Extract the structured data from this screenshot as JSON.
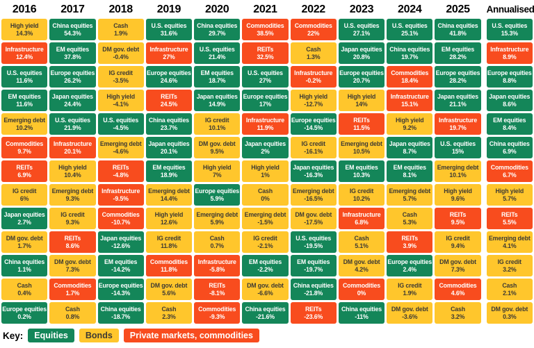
{
  "colors": {
    "equities": "#148659",
    "bonds": "#FFC62C",
    "private": "#F84C1E",
    "text_on_dark": "#FFFFFF",
    "text_on_yellow": "#3D3A33"
  },
  "chart_data": {
    "type": "table",
    "title": "",
    "key": {
      "label": "Key:",
      "items": [
        {
          "label": "Equities",
          "category": "equities"
        },
        {
          "label": "Bonds",
          "category": "bonds"
        },
        {
          "label": "Private markets, commodities",
          "category": "private"
        }
      ]
    },
    "columns": [
      {
        "year": "2016",
        "cells": [
          {
            "label": "High yield",
            "value": "14.3%",
            "category": "bonds"
          },
          {
            "label": "Infrastructure",
            "value": "12.4%",
            "category": "private"
          },
          {
            "label": "U.S. equities",
            "value": "11.6%",
            "category": "equities"
          },
          {
            "label": "EM equities",
            "value": "11.6%",
            "category": "equities"
          },
          {
            "label": "Emerging debt",
            "value": "10.2%",
            "category": "bonds"
          },
          {
            "label": "Commodities",
            "value": "9.7%",
            "category": "private"
          },
          {
            "label": "REITs",
            "value": "6.9%",
            "category": "private"
          },
          {
            "label": "IG credit",
            "value": "6%",
            "category": "bonds"
          },
          {
            "label": "Japan equities",
            "value": "2.7%",
            "category": "equities"
          },
          {
            "label": "DM gov. debt",
            "value": "1.7%",
            "category": "bonds"
          },
          {
            "label": "China equities",
            "value": "1.1%",
            "category": "equities"
          },
          {
            "label": "Cash",
            "value": "0.4%",
            "category": "bonds"
          },
          {
            "label": "Europe equities",
            "value": "0.2%",
            "category": "equities"
          }
        ]
      },
      {
        "year": "2017",
        "cells": [
          {
            "label": "China equities",
            "value": "54.3%",
            "category": "equities"
          },
          {
            "label": "EM equities",
            "value": "37.8%",
            "category": "equities"
          },
          {
            "label": "Europe equities",
            "value": "26.2%",
            "category": "equities"
          },
          {
            "label": "Japan equities",
            "value": "24.4%",
            "category": "equities"
          },
          {
            "label": "U.S. equities",
            "value": "21.9%",
            "category": "equities"
          },
          {
            "label": "Infrastructure",
            "value": "20.1%",
            "category": "private"
          },
          {
            "label": "High yield",
            "value": "10.4%",
            "category": "bonds"
          },
          {
            "label": "Emerging debt",
            "value": "9.3%",
            "category": "bonds"
          },
          {
            "label": "IG credit",
            "value": "9.3%",
            "category": "bonds"
          },
          {
            "label": "REITs",
            "value": "8.6%",
            "category": "private"
          },
          {
            "label": "DM gov. debt",
            "value": "7.3%",
            "category": "bonds"
          },
          {
            "label": "Commodities",
            "value": "1.7%",
            "category": "private"
          },
          {
            "label": "Cash",
            "value": "0.8%",
            "category": "bonds"
          }
        ]
      },
      {
        "year": "2018",
        "cells": [
          {
            "label": "Cash",
            "value": "1.9%",
            "category": "bonds"
          },
          {
            "label": "DM gov. debt",
            "value": "-0.4%",
            "category": "bonds"
          },
          {
            "label": "IG credit",
            "value": "-3.5%",
            "category": "bonds"
          },
          {
            "label": "High yield",
            "value": "-4.1%",
            "category": "bonds"
          },
          {
            "label": "U.S. equities",
            "value": "-4.5%",
            "category": "equities"
          },
          {
            "label": "Emerging debt",
            "value": "-4.6%",
            "category": "bonds"
          },
          {
            "label": "REITs",
            "value": "-4.8%",
            "category": "private"
          },
          {
            "label": "Infrastructure",
            "value": "-9.5%",
            "category": "private"
          },
          {
            "label": "Commodities",
            "value": "-10.7%",
            "category": "private"
          },
          {
            "label": "Japan equities",
            "value": "-12.6%",
            "category": "equities"
          },
          {
            "label": "EM equities",
            "value": "-14.2%",
            "category": "equities"
          },
          {
            "label": "Europe equities",
            "value": "-14.3%",
            "category": "equities"
          },
          {
            "label": "China equities",
            "value": "-18.7%",
            "category": "equities"
          }
        ]
      },
      {
        "year": "2019",
        "cells": [
          {
            "label": "U.S. equities",
            "value": "31.6%",
            "category": "equities"
          },
          {
            "label": "Infrastructure",
            "value": "27%",
            "category": "private"
          },
          {
            "label": "Europe equities",
            "value": "24.6%",
            "category": "equities"
          },
          {
            "label": "REITs",
            "value": "24.5%",
            "category": "private"
          },
          {
            "label": "China equities",
            "value": "23.7%",
            "category": "equities"
          },
          {
            "label": "Japan equities",
            "value": "20.1%",
            "category": "equities"
          },
          {
            "label": "EM equities",
            "value": "18.9%",
            "category": "equities"
          },
          {
            "label": "Emerging debt",
            "value": "14.4%",
            "category": "bonds"
          },
          {
            "label": "High yield",
            "value": "12.6%",
            "category": "bonds"
          },
          {
            "label": "IG credit",
            "value": "11.8%",
            "category": "bonds"
          },
          {
            "label": "Commodities",
            "value": "11.8%",
            "category": "private"
          },
          {
            "label": "DM gov. debt",
            "value": "5.6%",
            "category": "bonds"
          },
          {
            "label": "Cash",
            "value": "2.3%",
            "category": "bonds"
          }
        ]
      },
      {
        "year": "2020",
        "cells": [
          {
            "label": "China equities",
            "value": "29.7%",
            "category": "equities"
          },
          {
            "label": "U.S. equities",
            "value": "21.4%",
            "category": "equities"
          },
          {
            "label": "EM equities",
            "value": "18.7%",
            "category": "equities"
          },
          {
            "label": "Japan equities",
            "value": "14.9%",
            "category": "equities"
          },
          {
            "label": "IG credit",
            "value": "10.1%",
            "category": "bonds"
          },
          {
            "label": "DM gov. debt",
            "value": "9.5%",
            "category": "bonds"
          },
          {
            "label": "High yield",
            "value": "7%",
            "category": "bonds"
          },
          {
            "label": "Europe equities",
            "value": "5.9%",
            "category": "equities"
          },
          {
            "label": "Emerging debt",
            "value": "5.9%",
            "category": "bonds"
          },
          {
            "label": "Cash",
            "value": "0.7%",
            "category": "bonds"
          },
          {
            "label": "Infrastructure",
            "value": "-5.8%",
            "category": "private"
          },
          {
            "label": "REITs",
            "value": "-8.1%",
            "category": "private"
          },
          {
            "label": "Commodities",
            "value": "-9.3%",
            "category": "private"
          }
        ]
      },
      {
        "year": "2021",
        "cells": [
          {
            "label": "Commodities",
            "value": "38.5%",
            "category": "private"
          },
          {
            "label": "REITs",
            "value": "32.5%",
            "category": "private"
          },
          {
            "label": "U.S. equities",
            "value": "27%",
            "category": "equities"
          },
          {
            "label": "Europe equities",
            "value": "17%",
            "category": "equities"
          },
          {
            "label": "Infrastructure",
            "value": "11.9%",
            "category": "private"
          },
          {
            "label": "Japan equities",
            "value": "2%",
            "category": "equities"
          },
          {
            "label": "High yield",
            "value": "1%",
            "category": "bonds"
          },
          {
            "label": "Cash",
            "value": "0%",
            "category": "bonds"
          },
          {
            "label": "Emerging debt",
            "value": "-1.5%",
            "category": "bonds"
          },
          {
            "label": "IG credit",
            "value": "-2.1%",
            "category": "bonds"
          },
          {
            "label": "EM equities",
            "value": "-2.2%",
            "category": "equities"
          },
          {
            "label": "DM gov. debt",
            "value": "-6.6%",
            "category": "bonds"
          },
          {
            "label": "China equities",
            "value": "-21.6%",
            "category": "equities"
          }
        ]
      },
      {
        "year": "2022",
        "cells": [
          {
            "label": "Commodities",
            "value": "22%",
            "category": "private"
          },
          {
            "label": "Cash",
            "value": "1.3%",
            "category": "bonds"
          },
          {
            "label": "Infrastructure",
            "value": "-0.2%",
            "category": "private"
          },
          {
            "label": "High yield",
            "value": "-12.7%",
            "category": "bonds"
          },
          {
            "label": "Europe equities",
            "value": "-14.5%",
            "category": "equities"
          },
          {
            "label": "IG credit",
            "value": "-16.1%",
            "category": "bonds"
          },
          {
            "label": "Japan equities",
            "value": "-16.3%",
            "category": "equities"
          },
          {
            "label": "Emerging debt",
            "value": "-16.5%",
            "category": "bonds"
          },
          {
            "label": "DM gov. debt",
            "value": "-17.5%",
            "category": "bonds"
          },
          {
            "label": "U.S. equities",
            "value": "-19.5%",
            "category": "equities"
          },
          {
            "label": "EM equities",
            "value": "-19.7%",
            "category": "equities"
          },
          {
            "label": "China equities",
            "value": "-21.8%",
            "category": "equities"
          },
          {
            "label": "REITs",
            "value": "-23.6%",
            "category": "private"
          }
        ]
      },
      {
        "year": "2023",
        "cells": [
          {
            "label": "U.S. equities",
            "value": "27.1%",
            "category": "equities"
          },
          {
            "label": "Japan equities",
            "value": "20.8%",
            "category": "equities"
          },
          {
            "label": "Europe equities",
            "value": "20.7%",
            "category": "equities"
          },
          {
            "label": "High yield",
            "value": "14%",
            "category": "bonds"
          },
          {
            "label": "REITs",
            "value": "11.5%",
            "category": "private"
          },
          {
            "label": "Emerging debt",
            "value": "10.5%",
            "category": "bonds"
          },
          {
            "label": "EM equities",
            "value": "10.3%",
            "category": "equities"
          },
          {
            "label": "IG credit",
            "value": "10.2%",
            "category": "bonds"
          },
          {
            "label": "Infrastructure",
            "value": "6.8%",
            "category": "private"
          },
          {
            "label": "Cash",
            "value": "5.1%",
            "category": "bonds"
          },
          {
            "label": "DM gov. debt",
            "value": "4.2%",
            "category": "bonds"
          },
          {
            "label": "Commodities",
            "value": "0%",
            "category": "private"
          },
          {
            "label": "China equities",
            "value": "-11%",
            "category": "equities"
          }
        ]
      },
      {
        "year": "2024",
        "cells": [
          {
            "label": "U.S. equities",
            "value": "25.1%",
            "category": "equities"
          },
          {
            "label": "China equities",
            "value": "19.7%",
            "category": "equities"
          },
          {
            "label": "Commodities",
            "value": "18.4%",
            "category": "private"
          },
          {
            "label": "Infrastructure",
            "value": "15.1%",
            "category": "private"
          },
          {
            "label": "High yield",
            "value": "9.2%",
            "category": "bonds"
          },
          {
            "label": "Japan equities",
            "value": "8.7%",
            "category": "equities"
          },
          {
            "label": "EM equities",
            "value": "8.1%",
            "category": "equities"
          },
          {
            "label": "Emerging debt",
            "value": "5.7%",
            "category": "bonds"
          },
          {
            "label": "Cash",
            "value": "5.3%",
            "category": "bonds"
          },
          {
            "label": "REITs",
            "value": "3.9%",
            "category": "private"
          },
          {
            "label": "Europe equities",
            "value": "2.4%",
            "category": "equities"
          },
          {
            "label": "IG credit",
            "value": "1.9%",
            "category": "bonds"
          },
          {
            "label": "DM gov. debt",
            "value": "-3.6%",
            "category": "bonds"
          }
        ]
      },
      {
        "year": "2025",
        "cells": [
          {
            "label": "China equities",
            "value": "41.8%",
            "category": "equities"
          },
          {
            "label": "EM equities",
            "value": "28.2%",
            "category": "equities"
          },
          {
            "label": "Europe equities",
            "value": "28.2%",
            "category": "equities"
          },
          {
            "label": "Japan equities",
            "value": "21.1%",
            "category": "equities"
          },
          {
            "label": "Infrastructure",
            "value": "19.7%",
            "category": "private"
          },
          {
            "label": "U.S. equities",
            "value": "15%",
            "category": "equities"
          },
          {
            "label": "Emerging debt",
            "value": "10.1%",
            "category": "bonds"
          },
          {
            "label": "High yield",
            "value": "9.6%",
            "category": "bonds"
          },
          {
            "label": "REITs",
            "value": "9.5%",
            "category": "private"
          },
          {
            "label": "IG credit",
            "value": "9.4%",
            "category": "bonds"
          },
          {
            "label": "DM gov. debt",
            "value": "7.3%",
            "category": "bonds"
          },
          {
            "label": "Commodities",
            "value": "4.6%",
            "category": "private"
          },
          {
            "label": "Cash",
            "value": "3.2%",
            "category": "bonds"
          }
        ]
      },
      {
        "year": "Annualised",
        "annualised": true,
        "cells": [
          {
            "label": "U.S. equities",
            "value": "15.3%",
            "category": "equities"
          },
          {
            "label": "Infrastructure",
            "value": "8.9%",
            "category": "private"
          },
          {
            "label": "Europe equities",
            "value": "8.8%",
            "category": "equities"
          },
          {
            "label": "Japan equities",
            "value": "8.6%",
            "category": "equities"
          },
          {
            "label": "EM equities",
            "value": "8.4%",
            "category": "equities"
          },
          {
            "label": "China equities",
            "value": "6.9%",
            "category": "equities"
          },
          {
            "label": "Commodities",
            "value": "6.7%",
            "category": "private"
          },
          {
            "label": "High yield",
            "value": "5.7%",
            "category": "bonds"
          },
          {
            "label": "REITs",
            "value": "5.5%",
            "category": "private"
          },
          {
            "label": "Emerging debt",
            "value": "4.1%",
            "category": "bonds"
          },
          {
            "label": "IG credit",
            "value": "3.2%",
            "category": "bonds"
          },
          {
            "label": "Cash",
            "value": "2.1%",
            "category": "bonds"
          },
          {
            "label": "DM gov. debt",
            "value": "0.3%",
            "category": "bonds"
          }
        ]
      }
    ]
  }
}
